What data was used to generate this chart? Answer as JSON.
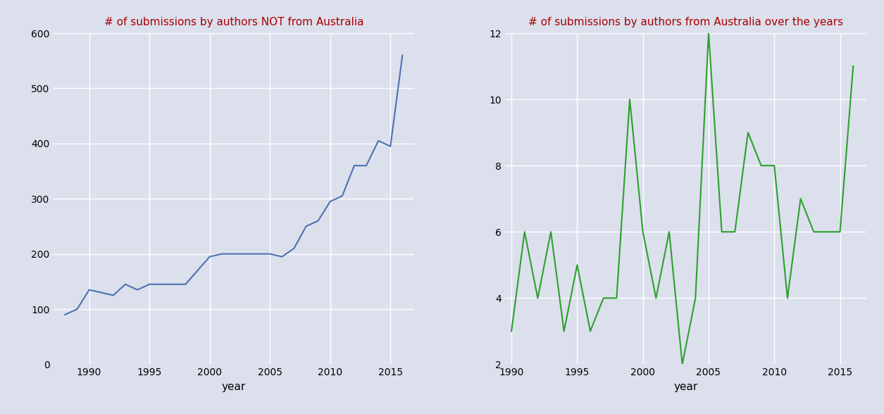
{
  "left_title": "# of submissions by authors NOT from Australia",
  "right_title": "# of submissions by authors from Australia over the years",
  "xlabel": "year",
  "left_color": "#4c72b0",
  "right_color": "#2ca02c",
  "title_color": "#aa0000",
  "bg_color": "#dce0ed",
  "fig_color": "#dce0ed",
  "left_years": [
    1988,
    1989,
    1990,
    1991,
    1992,
    1993,
    1994,
    1995,
    1996,
    1997,
    1998,
    1999,
    2000,
    2001,
    2002,
    2003,
    2004,
    2005,
    2006,
    2007,
    2008,
    2009,
    2010,
    2011,
    2012,
    2013,
    2014,
    2015,
    2016
  ],
  "left_values": [
    90,
    100,
    135,
    130,
    125,
    145,
    135,
    145,
    145,
    145,
    145,
    170,
    195,
    200,
    200,
    200,
    200,
    200,
    195,
    210,
    250,
    260,
    295,
    305,
    360,
    360,
    405,
    395,
    560
  ],
  "right_years": [
    1990,
    1991,
    1992,
    1993,
    1994,
    1995,
    1996,
    1997,
    1998,
    1999,
    2000,
    2001,
    2002,
    2003,
    2004,
    2005,
    2006,
    2007,
    2008,
    2009,
    2010,
    2011,
    2012,
    2013,
    2014,
    2015,
    2016
  ],
  "right_values": [
    3,
    6,
    4,
    6,
    3,
    5,
    3,
    4,
    4,
    10,
    6,
    4,
    6,
    2,
    4,
    12,
    6,
    6,
    9,
    8,
    8,
    4,
    7,
    6,
    6,
    6,
    11
  ],
  "left_ylim": [
    0,
    600
  ],
  "right_ylim": [
    2,
    12
  ],
  "left_yticks": [
    0,
    100,
    200,
    300,
    400,
    500,
    600
  ],
  "right_yticks": [
    2,
    4,
    6,
    8,
    10,
    12
  ],
  "left_xlim": [
    1987,
    2017
  ],
  "right_xlim": [
    1989.5,
    2017
  ],
  "left_xticks": [
    1990,
    1995,
    2000,
    2005,
    2010,
    2015
  ],
  "right_xticks": [
    1990,
    1995,
    2000,
    2005,
    2010,
    2015
  ],
  "grid_color": "#ffffff",
  "grid_lw": 1.0
}
